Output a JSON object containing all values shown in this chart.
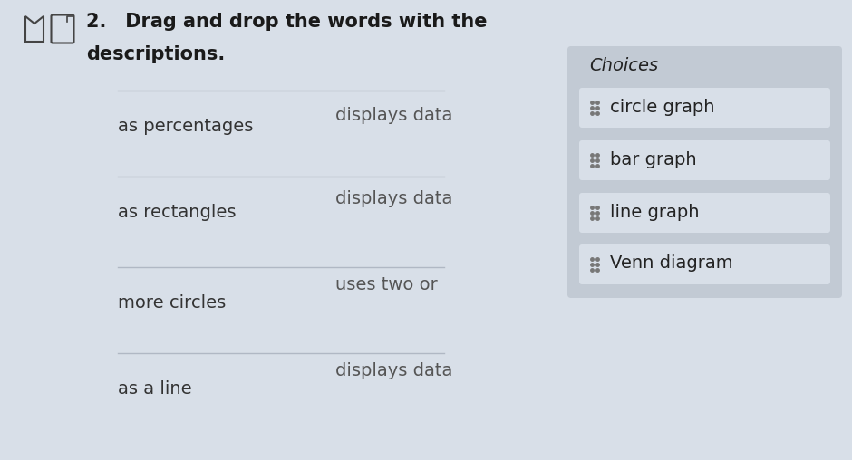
{
  "background_color": "#d8dfe8",
  "title_bold": "2. Drag and drop the words with the",
  "title_line2": "descriptions.",
  "choices_title": "Choices",
  "choices": [
    "circle graph",
    "bar graph",
    "line graph",
    "Venn diagram"
  ],
  "choices_box_color": "#c2cad4",
  "choices_item_color": "#d8dfe8",
  "left_texts": [
    "as percentages",
    "as rectangles",
    "more circles",
    "as a line"
  ],
  "right_texts": [
    "displays data",
    "displays data",
    "uses two or",
    "displays data"
  ],
  "title_fontsize": 15,
  "body_fontsize": 14,
  "choices_title_fontsize": 14,
  "choices_item_fontsize": 14
}
